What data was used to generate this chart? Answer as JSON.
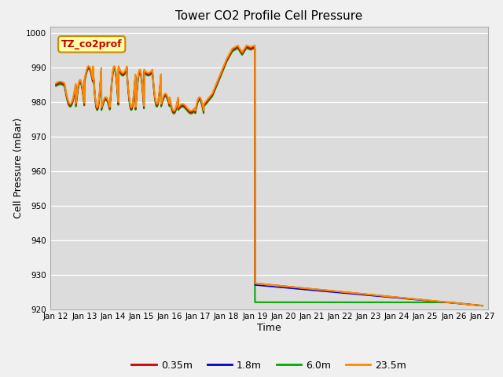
{
  "title": "Tower CO2 Profile Cell Pressure",
  "xlabel": "Time",
  "ylabel": "Cell Pressure (mBar)",
  "ylim": [
    920,
    1002
  ],
  "yticks": [
    920,
    930,
    940,
    950,
    960,
    970,
    980,
    990,
    1000
  ],
  "background_color": "#dcdcdc",
  "fig_background": "#f0f0f0",
  "legend_labels": [
    "0.35m",
    "1.8m",
    "6.0m",
    "23.5m"
  ],
  "legend_colors": [
    "#cc0000",
    "#0000cc",
    "#00aa00",
    "#ff8800"
  ],
  "annotation_text": "TZ_co2prof",
  "annotation_bg": "#ffffaa",
  "annotation_border": "#cc8800",
  "x_ticks_labels": [
    "Jan 12",
    "Jan 13",
    "Jan 14",
    "Jan 15",
    "Jan 16",
    "Jan 17",
    "Jan 18",
    "Jan 19",
    "Jan 20",
    "Jan 21",
    "Jan 22",
    "Jan 23",
    "Jan 24",
    "Jan 25",
    "Jan 26",
    "Jan 27"
  ],
  "x_ticks_pos": [
    0,
    1,
    2,
    3,
    4,
    5,
    6,
    7,
    8,
    9,
    10,
    11,
    12,
    13,
    14,
    15
  ]
}
